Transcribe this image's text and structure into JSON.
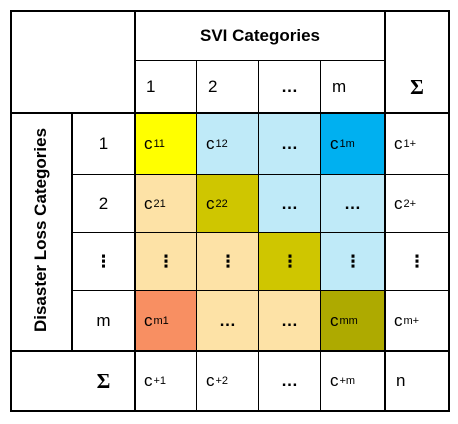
{
  "col_header_title": "SVI Categories",
  "row_header_title": "Disaster Loss Categories",
  "col_labels": [
    "1",
    "2",
    "…",
    "m"
  ],
  "sum_symbol": "Σ",
  "row_labels": [
    "1",
    "2",
    "⋮",
    "m"
  ],
  "cells": [
    [
      {
        "base": "c",
        "sub": "11",
        "color": "#ffff00"
      },
      {
        "base": "c",
        "sub": "12",
        "color": "#bfeaf8"
      },
      {
        "base": "…",
        "sub": "",
        "color": "#bfeaf8"
      },
      {
        "base": "c",
        "sub": "1m",
        "color": "#00b0f0"
      }
    ],
    [
      {
        "base": "c",
        "sub": "21",
        "color": "#fde2a6"
      },
      {
        "base": "c",
        "sub": "22",
        "color": "#cfc600"
      },
      {
        "base": "…",
        "sub": "",
        "color": "#bfeaf8"
      },
      {
        "base": "…",
        "sub": "",
        "color": "#bfeaf8"
      }
    ],
    [
      {
        "base": "⋮",
        "sub": "",
        "color": "#fde2a6"
      },
      {
        "base": "⋮",
        "sub": "",
        "color": "#fde2a6"
      },
      {
        "base": "⋮",
        "sub": "",
        "color": "#cfc600"
      },
      {
        "base": "⋮",
        "sub": "",
        "color": "#bfeaf8"
      }
    ],
    [
      {
        "base": "c",
        "sub": "m1",
        "color": "#f88f62"
      },
      {
        "base": "…",
        "sub": "",
        "color": "#fde2a6"
      },
      {
        "base": "…",
        "sub": "",
        "color": "#fde2a6"
      },
      {
        "base": "c",
        "sub": "mm",
        "color": "#aeaa00"
      }
    ]
  ],
  "row_sums": [
    {
      "base": "c",
      "sub": "1+"
    },
    {
      "base": "c",
      "sub": "2+"
    },
    {
      "base": "⋮",
      "sub": ""
    },
    {
      "base": "c",
      "sub": "m+"
    }
  ],
  "col_sums": [
    {
      "base": "c",
      "sub": "+1"
    },
    {
      "base": "c",
      "sub": "+2"
    },
    {
      "base": "…",
      "sub": ""
    },
    {
      "base": "c",
      "sub": "+m"
    }
  ],
  "grand_total": "n"
}
